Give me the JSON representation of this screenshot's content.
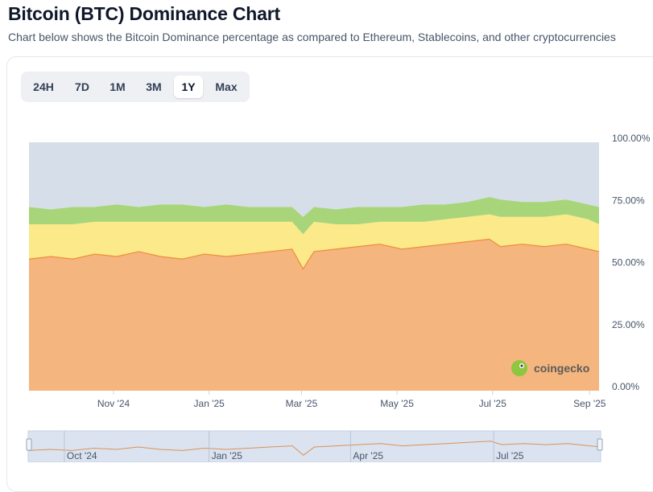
{
  "header": {
    "title": "Bitcoin (BTC) Dominance Chart",
    "subtitle": "Chart below shows the Bitcoin Dominance percentage as compared to Ethereum, Stablecoins, and other cryptocurrencies"
  },
  "range_tabs": [
    {
      "label": "24H",
      "active": false
    },
    {
      "label": "7D",
      "active": false
    },
    {
      "label": "1M",
      "active": false
    },
    {
      "label": "3M",
      "active": false
    },
    {
      "label": "1Y",
      "active": true
    },
    {
      "label": "Max",
      "active": false
    }
  ],
  "watermark": {
    "text": "coingecko",
    "icon": "gecko-logo-icon"
  },
  "colors": {
    "btc": "#f4b57e",
    "btc_line": "#ef8c3c",
    "eth": "#fbe98a",
    "stable": "#a8d57a",
    "other": "#d6dee9",
    "navigator_bg": "#dbe3f0",
    "navigator_line": "#d9925a"
  },
  "chart_data": {
    "type": "area",
    "stacked": true,
    "x": [
      "2024-09-08",
      "2024-09-22",
      "2024-10-06",
      "2024-10-20",
      "2024-11-03",
      "2024-11-17",
      "2024-12-01",
      "2024-12-15",
      "2024-12-29",
      "2025-01-12",
      "2025-01-26",
      "2025-02-09",
      "2025-02-23",
      "2025-03-02",
      "2025-03-09",
      "2025-03-23",
      "2025-04-06",
      "2025-04-20",
      "2025-05-04",
      "2025-05-18",
      "2025-06-01",
      "2025-06-15",
      "2025-06-29",
      "2025-07-06",
      "2025-07-20",
      "2025-08-03",
      "2025-08-17",
      "2025-08-31",
      "2025-09-07"
    ],
    "series": [
      {
        "key": "btc",
        "values": [
          53,
          54,
          53,
          55,
          54,
          56,
          54,
          53,
          55,
          54,
          55,
          56,
          57,
          49,
          56,
          57,
          58,
          59,
          57,
          58,
          59,
          60,
          61,
          58,
          59,
          58,
          59,
          57,
          56
        ]
      },
      {
        "key": "eth",
        "values": [
          14,
          13,
          14,
          13,
          14,
          12,
          14,
          15,
          13,
          14,
          13,
          12,
          11,
          14,
          12,
          10,
          9,
          9,
          11,
          10,
          10,
          10,
          10,
          12,
          11,
          12,
          12,
          12,
          11
        ]
      },
      {
        "key": "stable",
        "values": [
          7,
          6,
          7,
          6,
          7,
          6,
          7,
          7,
          6,
          7,
          6,
          6,
          6,
          7,
          6,
          6,
          7,
          6,
          6,
          7,
          6,
          6,
          7,
          7,
          6,
          6,
          6,
          6,
          7
        ]
      },
      {
        "key": "other",
        "values": [
          26,
          27,
          26,
          26,
          25,
          26,
          25,
          25,
          26,
          25,
          26,
          26,
          26,
          30,
          26,
          27,
          26,
          26,
          26,
          25,
          25,
          24,
          22,
          23,
          24,
          24,
          23,
          25,
          26
        ]
      }
    ],
    "x_ticks": [
      "Nov '24",
      "Jan '25",
      "Mar '25",
      "May '25",
      "Jul '25",
      "Sep '25"
    ],
    "y_ticks": [
      "100.00%",
      "75.00%",
      "50.00%",
      "25.00%",
      "0.00%"
    ],
    "ylim": [
      0,
      100
    ],
    "navigator_ticks": [
      "Oct '24",
      "Jan '25",
      "Apr '25",
      "Jul '25"
    ]
  }
}
